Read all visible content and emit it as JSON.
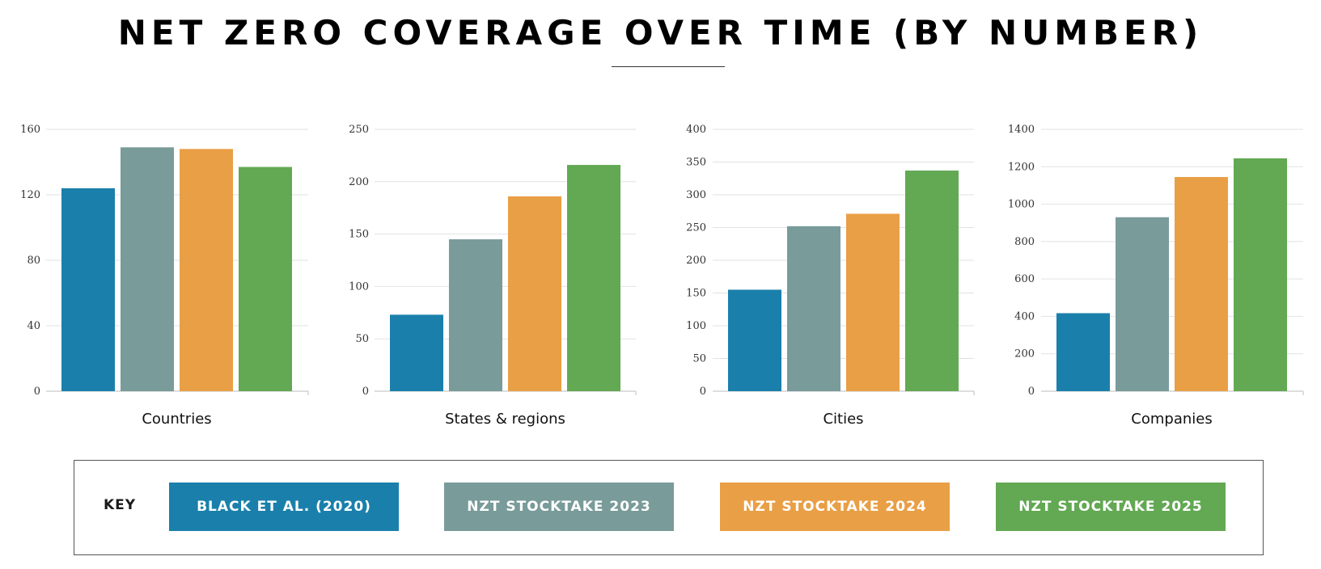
{
  "title": "NET ZERO COVERAGE OVER TIME (BY NUMBER)",
  "series": [
    {
      "name": "BLACK ET AL. (2020)",
      "color": "#1a80ab"
    },
    {
      "name": "NZT STOCKTAKE 2023",
      "color": "#799b9a"
    },
    {
      "name": "NZT STOCKTAKE 2024",
      "color": "#e99f46"
    },
    {
      "name": "NZT STOCKTAKE 2025",
      "color": "#63a853"
    }
  ],
  "legend": {
    "label": "KEY",
    "position": "bottom"
  },
  "chart_data": [
    {
      "type": "bar",
      "category": "Countries",
      "values": [
        124,
        149,
        148,
        137
      ],
      "ylim": [
        0,
        160
      ],
      "yticks": [
        0,
        40,
        80,
        120,
        160
      ],
      "grid": true
    },
    {
      "type": "bar",
      "category": "States & regions",
      "values": [
        73,
        145,
        186,
        216
      ],
      "ylim": [
        0,
        250
      ],
      "yticks": [
        0,
        50,
        100,
        150,
        200,
        250
      ],
      "grid": true
    },
    {
      "type": "bar",
      "category": "Cities",
      "values": [
        155,
        252,
        271,
        337
      ],
      "ylim": [
        0,
        400
      ],
      "yticks": [
        0,
        50,
        100,
        150,
        200,
        250,
        300,
        350,
        400
      ],
      "grid": true
    },
    {
      "type": "bar",
      "category": "Companies",
      "values": [
        417,
        930,
        1145,
        1245
      ],
      "ylim": [
        0,
        1400
      ],
      "yticks": [
        0,
        200,
        400,
        600,
        800,
        1000,
        1200,
        1400
      ],
      "grid": true
    }
  ]
}
